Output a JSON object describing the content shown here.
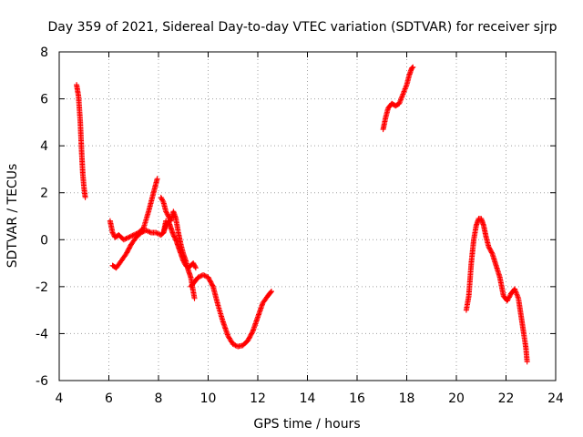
{
  "chart_data": {
    "type": "scatter",
    "title": "Day 359 of 2021, Sidereal Day-to-day VTEC variation (SDTVAR) for receiver sjrp",
    "xlabel": "GPS time / hours",
    "ylabel": "SDTVAR / TECUs",
    "xlim": [
      4,
      24
    ],
    "ylim": [
      -6,
      8
    ],
    "xticks": [
      4,
      6,
      8,
      10,
      12,
      14,
      16,
      18,
      20,
      22,
      24
    ],
    "yticks": [
      -6,
      -4,
      -2,
      0,
      2,
      4,
      6,
      8
    ],
    "grid": true,
    "marker": "+",
    "color": "#ff0000",
    "series": [
      {
        "name": "SDTVAR",
        "segments": [
          {
            "x": [
              4.7,
              4.78,
              4.85,
              4.9,
              4.95,
              5.0,
              5.05
            ],
            "y": [
              6.6,
              6.1,
              5.0,
              3.8,
              2.8,
              2.2,
              1.8
            ]
          },
          {
            "x": [
              6.05,
              6.15,
              6.25,
              6.4,
              6.6,
              6.8,
              7.0,
              7.2,
              7.4,
              7.6,
              7.8,
              7.95
            ],
            "y": [
              0.8,
              0.3,
              0.1,
              0.2,
              0.0,
              0.1,
              0.2,
              0.3,
              0.5,
              1.2,
              2.0,
              2.6
            ]
          },
          {
            "x": [
              6.15,
              6.3,
              6.5,
              6.7,
              6.9,
              7.1,
              7.3,
              7.5,
              7.7,
              7.9,
              8.1,
              8.2,
              8.3
            ],
            "y": [
              -1.1,
              -1.2,
              -0.9,
              -0.6,
              -0.2,
              0.1,
              0.3,
              0.4,
              0.3,
              0.3,
              0.2,
              0.3,
              0.8
            ]
          },
          {
            "x": [
              8.1,
              8.2,
              8.3,
              8.4,
              8.5,
              8.6,
              8.7,
              8.8,
              8.9,
              9.0,
              9.1,
              9.2,
              9.3,
              9.45
            ],
            "y": [
              1.8,
              1.6,
              1.2,
              1.0,
              0.8,
              1.2,
              0.9,
              0.3,
              -0.2,
              -0.6,
              -0.9,
              -1.3,
              -1.6,
              -2.5
            ]
          },
          {
            "x": [
              8.2,
              8.3,
              8.4,
              8.5,
              8.6,
              8.7,
              8.8,
              8.9,
              9.0,
              9.1,
              9.2,
              9.3,
              9.4,
              9.5
            ],
            "y": [
              0.3,
              0.6,
              0.8,
              0.5,
              0.2,
              0.0,
              -0.3,
              -0.6,
              -0.9,
              -1.1,
              -1.2,
              -1.1,
              -1.0,
              -1.2
            ]
          },
          {
            "x": [
              9.3,
              9.45,
              9.6,
              9.8,
              10.0,
              10.2,
              10.4,
              10.6,
              10.8,
              11.0,
              11.2,
              11.4,
              11.6,
              11.8,
              12.0,
              12.2,
              12.4,
              12.55
            ],
            "y": [
              -2.0,
              -1.8,
              -1.6,
              -1.5,
              -1.6,
              -2.0,
              -2.8,
              -3.5,
              -4.1,
              -4.45,
              -4.55,
              -4.5,
              -4.3,
              -3.9,
              -3.3,
              -2.7,
              -2.4,
              -2.2
            ]
          },
          {
            "x": [
              17.05,
              17.15,
              17.25,
              17.4,
              17.55,
              17.7,
              17.85,
              18.0,
              18.1,
              18.2,
              18.25
            ],
            "y": [
              4.7,
              5.2,
              5.6,
              5.8,
              5.7,
              5.8,
              6.2,
              6.6,
              7.0,
              7.3,
              7.35
            ]
          },
          {
            "x": [
              20.4,
              20.5,
              20.6,
              20.7,
              20.8,
              20.9,
              21.0,
              21.1,
              21.2,
              21.3,
              21.45,
              21.6,
              21.75,
              21.9,
              22.05,
              22.2,
              22.35,
              22.5,
              22.6,
              22.7,
              22.8,
              22.85
            ],
            "y": [
              -3.0,
              -2.4,
              -1.0,
              0.0,
              0.6,
              0.9,
              0.9,
              0.6,
              0.1,
              -0.3,
              -0.6,
              -1.1,
              -1.6,
              -2.4,
              -2.6,
              -2.3,
              -2.1,
              -2.5,
              -3.2,
              -3.9,
              -4.6,
              -5.2
            ]
          }
        ]
      }
    ]
  }
}
